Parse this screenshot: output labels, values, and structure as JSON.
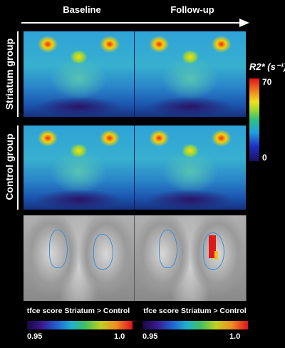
{
  "header": {
    "col_baseline": "Baseline",
    "col_followup": "Follow-up"
  },
  "rows": {
    "striatum": "Striatum group",
    "control": "Control group"
  },
  "colorbar_r2": {
    "title": "R2* (s⁻¹)",
    "max": "70",
    "min": "0"
  },
  "tfce": {
    "caption_left": "tfce score Striatum > Control",
    "caption_right": "tfce score Striatum > Control",
    "left_min": "0.95",
    "left_max": "1.0",
    "right_min": "0.95",
    "right_max": "1.0"
  }
}
